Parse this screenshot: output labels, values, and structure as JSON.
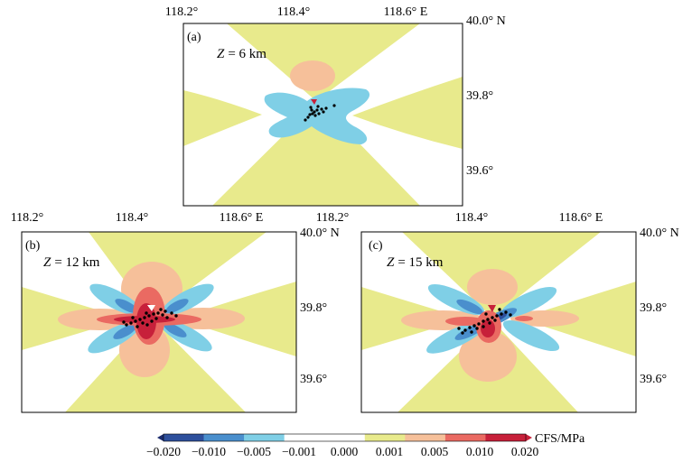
{
  "colors": {
    "yellow": "#e8ea8c",
    "blue_light": "#7fcfe6",
    "blue_mid": "#4a8fcd",
    "blue_dark": "#2d4f9c",
    "orange_light": "#f6c09a",
    "red_mid": "#ea6a62",
    "red_dark": "#c7203a",
    "navy": "#1c2c6e",
    "dots": "#000000"
  },
  "panels": [
    {
      "label": "(a)",
      "depth_var": "Z",
      "depth_value": "= 6 km",
      "lon_ticks": [
        "118.2°",
        "118.4°",
        "118.6° E"
      ],
      "lat_ticks": [
        "40.0° N",
        "39.8°",
        "39.6°"
      ]
    },
    {
      "label": "(b)",
      "depth_var": "Z",
      "depth_value": "= 12 km",
      "lon_ticks": [
        "118.2°",
        "118.4°",
        "118.6° E"
      ],
      "lat_ticks": [
        "40.0° N",
        "39.8°",
        "39.6°"
      ]
    },
    {
      "label": "(c)",
      "depth_var": "Z",
      "depth_value": "= 15 km",
      "lon_ticks": [
        "118.2°",
        "118.4°",
        "118.6° E"
      ],
      "lat_ticks": [
        "40.0° N",
        "39.8°",
        "39.6°"
      ]
    }
  ],
  "colorbar": {
    "ticks": [
      "−0.020",
      "−0.010",
      "−0.005",
      "−0.001",
      "0.000",
      "0.001",
      "0.005",
      "0.010",
      "0.020"
    ],
    "unit": "CFS/MPa",
    "colors": [
      "#2d4f9c",
      "#4a8fcd",
      "#7fcfe6",
      "#ffffff",
      "#ffffff",
      "#e8ea8c",
      "#f6c09a",
      "#ea6a62",
      "#c7203a"
    ],
    "arrow_left": "#1c2c6e",
    "arrow_right": "#c7203a"
  }
}
